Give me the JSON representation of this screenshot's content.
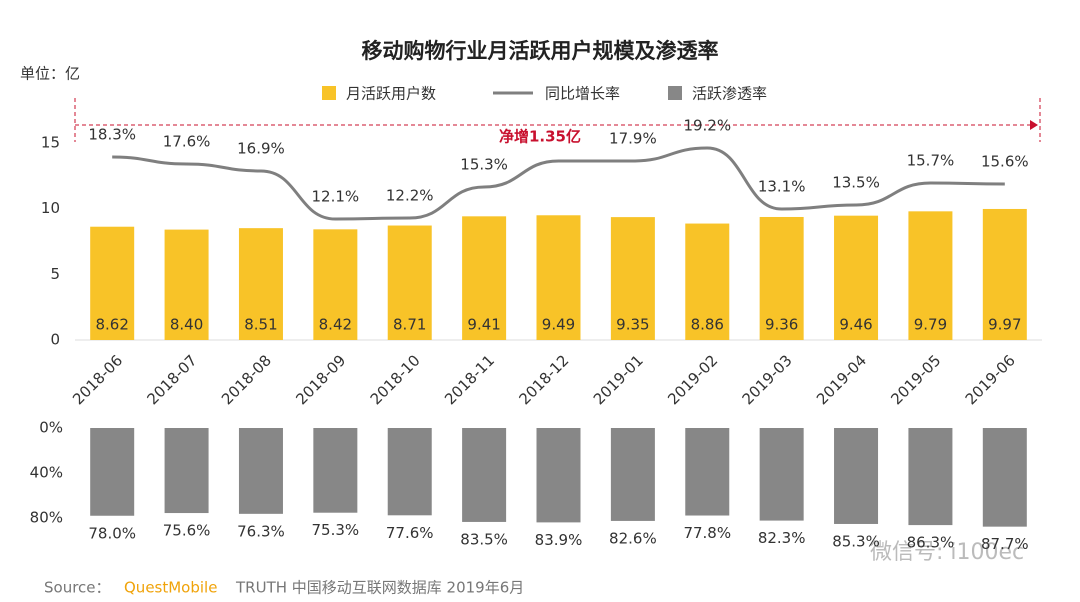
{
  "chart_data": [
    {
      "type": "bar_line",
      "title": "移动购物行业月活跃用户规模及渗透率",
      "unit": "单位：亿",
      "categories": [
        "2018-06",
        "2018-07",
        "2018-08",
        "2018-09",
        "2018-10",
        "2018-11",
        "2018-12",
        "2019-01",
        "2019-02",
        "2019-03",
        "2019-04",
        "2019-05",
        "2019-06"
      ],
      "ylim": [
        0,
        17.5
      ],
      "yticks": [
        0,
        5,
        10,
        15
      ],
      "y2lim": [
        0,
        23
      ],
      "annotation": "净增1.35亿",
      "series": [
        {
          "name": "月活跃用户数",
          "color": "#f8c328",
          "values": [
            8.62,
            8.4,
            8.51,
            8.42,
            8.71,
            9.41,
            9.49,
            9.35,
            8.86,
            9.36,
            9.46,
            9.79,
            9.97
          ],
          "value_labels": [
            "8.62",
            "8.40",
            "8.51",
            "8.42",
            "8.71",
            "9.41",
            "9.49",
            "9.35",
            "8.86",
            "9.36",
            "9.46",
            "9.79",
            "9.97"
          ]
        },
        {
          "name": "同比增长率",
          "color": "#7f7f7f",
          "axis": "y2",
          "values": [
            18.3,
            17.6,
            16.9,
            12.1,
            12.2,
            15.3,
            17.9,
            17.9,
            19.2,
            13.1,
            13.5,
            15.7,
            15.6
          ],
          "value_labels": [
            "18.3%",
            "17.6%",
            "16.9%",
            "12.1%",
            "12.2%",
            "15.3%",
            null,
            "17.9%",
            "19.2%",
            "13.1%",
            "13.5%",
            "15.7%",
            "15.6%"
          ]
        }
      ]
    },
    {
      "type": "bar",
      "inverted": true,
      "ylim": [
        0,
        80
      ],
      "yticks": [
        {
          "value": 0,
          "label": "0%"
        },
        {
          "value": 40,
          "label": "40%"
        },
        {
          "value": 80,
          "label": "80%"
        }
      ],
      "series": [
        {
          "name": "活跃渗透率",
          "color": "#878787",
          "values": [
            78.0,
            75.6,
            76.3,
            75.3,
            77.6,
            83.5,
            83.9,
            82.6,
            77.8,
            82.3,
            85.3,
            86.3,
            87.7
          ],
          "value_labels": [
            "78.0%",
            "75.6%",
            "76.3%",
            "75.3%",
            "77.6%",
            "83.5%",
            "83.9%",
            "82.6%",
            "77.8%",
            "82.3%",
            "85.3%",
            "86.3%",
            "87.7%"
          ]
        }
      ]
    }
  ],
  "source": {
    "label": "Source：",
    "brand": "QuestMobile",
    "text": "TRUTH 中国移动互联网数据库 2019年6月"
  },
  "watermark": "微信号: i100ec"
}
